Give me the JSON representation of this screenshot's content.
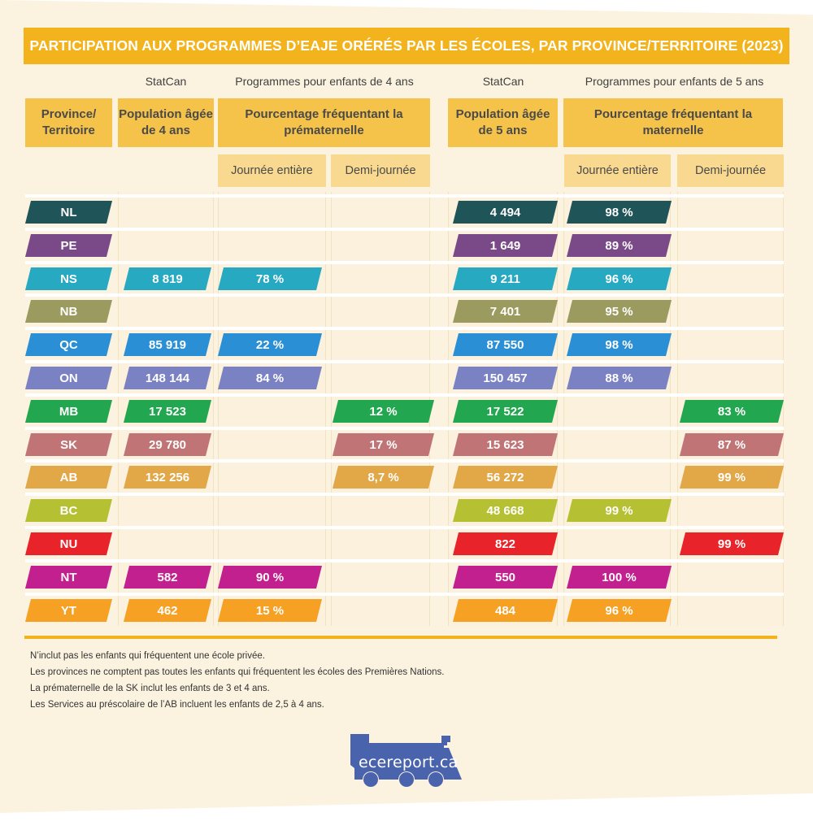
{
  "title": "PARTICIPATION AUX PROGRAMMES D’EAJE ORÉRÉS PAR LES ÉCOLES, PAR PROVINCE/TERRITOIRE (2023)",
  "super_headers": {
    "statcan_4": "StatCan",
    "programs_4": "Programmes pour enfants de 4 ans",
    "statcan_5": "StatCan",
    "programs_5": "Programmes pour enfants de 5 ans"
  },
  "headers": {
    "province": "Province/ Territoire",
    "pop4": "Population âgée de 4 ans",
    "pct4": "Pourcentage fréquentant la prématernelle",
    "pop5": "Population âgée de 5 ans",
    "pct5": "Pourcentage fréquentant la maternelle",
    "full_day_4": "Journée entière",
    "half_day_4": "Demi-journée",
    "full_day_5": "Journée entière",
    "half_day_5": "Demi-journée"
  },
  "rows": [
    {
      "code": "NL",
      "color": "#1f5458",
      "pop4": "",
      "full4": "",
      "half4": "",
      "pop5": "4 494",
      "full5": "98 %",
      "half5": ""
    },
    {
      "code": "PE",
      "color": "#7a4a88",
      "pop4": "",
      "full4": "",
      "half4": "",
      "pop5": "1 649",
      "full5": "89 %",
      "half5": ""
    },
    {
      "code": "NS",
      "color": "#27aac1",
      "pop4": "8 819",
      "full4": "78 %",
      "half4": "",
      "pop5": "9 211",
      "full5": "96 %",
      "half5": ""
    },
    {
      "code": "NB",
      "color": "#9b9b5f",
      "pop4": "",
      "full4": "",
      "half4": "",
      "pop5": "7 401",
      "full5": "95 %",
      "half5": ""
    },
    {
      "code": "QC",
      "color": "#2b8fd5",
      "pop4": "85 919",
      "full4": "22 %",
      "half4": "",
      "pop5": "87 550",
      "full5": "98 %",
      "half5": ""
    },
    {
      "code": "ON",
      "color": "#7b82c3",
      "pop4": "148 144",
      "full4": "84 %",
      "half4": "",
      "pop5": "150 457",
      "full5": "88 %",
      "half5": ""
    },
    {
      "code": "MB",
      "color": "#22a64f",
      "pop4": "17 523",
      "full4": "",
      "half4": "12 %",
      "pop5": "17 522",
      "full5": "",
      "half5": "83 %"
    },
    {
      "code": "SK",
      "color": "#c07476",
      "pop4": "29 780",
      "full4": "",
      "half4": "17 %",
      "pop5": "15 623",
      "full5": "",
      "half5": "87 %"
    },
    {
      "code": "AB",
      "color": "#e2a747",
      "pop4": "132 256",
      "full4": "",
      "half4": "8,7 %",
      "pop5": "56 272",
      "full5": "",
      "half5": "99 %"
    },
    {
      "code": "BC",
      "color": "#b5c033",
      "pop4": "",
      "full4": "",
      "half4": "",
      "pop5": "48 668",
      "full5": "99 %",
      "half5": ""
    },
    {
      "code": "NU",
      "color": "#e8232a",
      "pop4": "",
      "full4": "",
      "half4": "",
      "pop5": "822",
      "full5": "",
      "half5": "99 %"
    },
    {
      "code": "NT",
      "color": "#c21f8f",
      "pop4": "582",
      "full4": "90 %",
      "half4": "",
      "pop5": "550",
      "full5": "100 %",
      "half5": ""
    },
    {
      "code": "YT",
      "color": "#f6a123",
      "pop4": "462",
      "full4": "15 %",
      "half4": "",
      "pop5": "484",
      "full5": "96 %",
      "half5": ""
    }
  ],
  "notes": [
    "N’inclut pas les enfants qui fréquentent une école privée.",
    "Les provinces ne comptent pas toutes les enfants qui fréquentent les écoles des Premières Nations.",
    "La prématernelle de la SK inclut les enfants de 3 et 4 ans.",
    "Les Services au préscolaire de l’AB incluent les enfants de 2,5 à 4 ans."
  ],
  "logo_text": "ecereport.ca",
  "colors": {
    "title_bar": "#f2b31c",
    "header": "#f5c24a",
    "subheader": "#f8d98f",
    "background": "#fbf3e0",
    "logo": "#4a63ad"
  },
  "chart_data": {
    "type": "table",
    "title": "PARTICIPATION AUX PROGRAMMES D’EAJE ORÉRÉS PAR LES ÉCOLES, PAR PROVINCE/TERRITOIRE (2023)",
    "columns": [
      "Province/Territoire",
      "Population âgée de 4 ans (StatCan)",
      "Prématernelle — Journée entière",
      "Prématernelle — Demi-journée",
      "Population âgée de 5 ans (StatCan)",
      "Maternelle — Journée entière",
      "Maternelle — Demi-journée"
    ],
    "rows": [
      [
        "NL",
        null,
        null,
        null,
        4494,
        98,
        null
      ],
      [
        "PE",
        null,
        null,
        null,
        1649,
        89,
        null
      ],
      [
        "NS",
        8819,
        78,
        null,
        9211,
        96,
        null
      ],
      [
        "NB",
        null,
        null,
        null,
        7401,
        95,
        null
      ],
      [
        "QC",
        85919,
        22,
        null,
        87550,
        98,
        null
      ],
      [
        "ON",
        148144,
        84,
        null,
        150457,
        88,
        null
      ],
      [
        "MB",
        17523,
        null,
        12,
        17522,
        null,
        83
      ],
      [
        "SK",
        29780,
        null,
        17,
        15623,
        null,
        87
      ],
      [
        "AB",
        132256,
        null,
        8.7,
        56272,
        null,
        99
      ],
      [
        "BC",
        null,
        null,
        null,
        48668,
        99,
        null
      ],
      [
        "NU",
        null,
        null,
        null,
        822,
        null,
        99
      ],
      [
        "NT",
        582,
        90,
        null,
        550,
        100,
        null
      ],
      [
        "YT",
        462,
        15,
        null,
        484,
        96,
        null
      ]
    ],
    "units": {
      "population": "children",
      "percent": "%"
    }
  }
}
